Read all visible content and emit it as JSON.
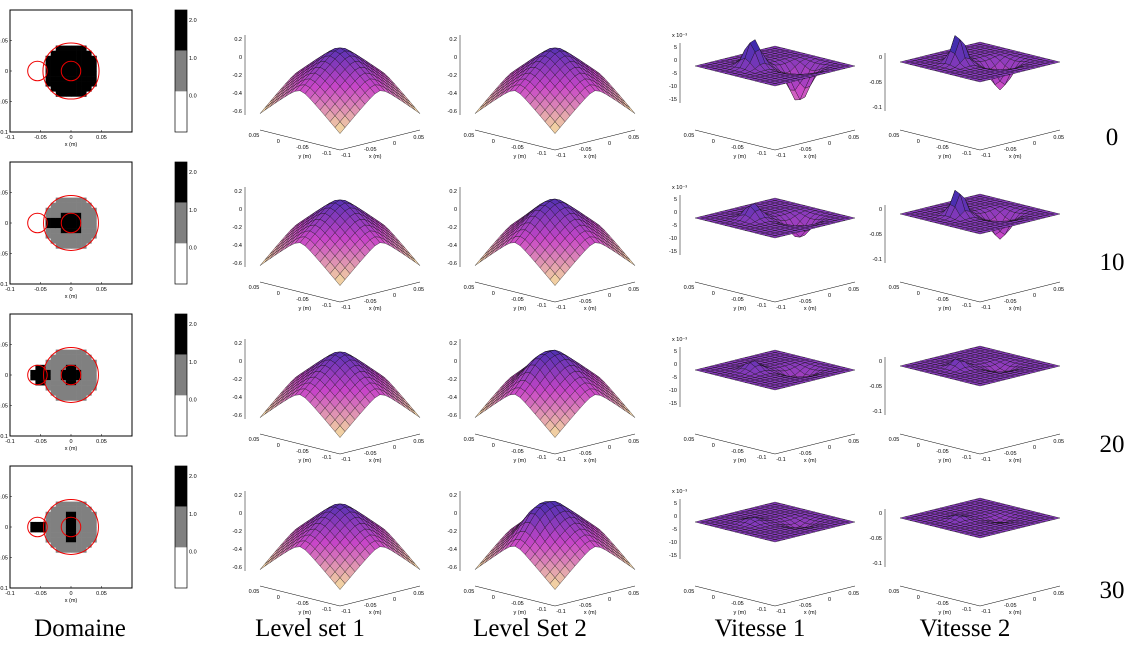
{
  "columns": [
    "Domaine",
    "Level set 1",
    "Level Set 2",
    "Vitesse 1",
    "Vitesse 2"
  ],
  "rows": [
    "0",
    "10",
    "20",
    "30"
  ],
  "domain_panel": {
    "xlabel": "x (m)",
    "ylabel": "y (m)",
    "xticks": [
      "-0.1",
      "-0.05",
      "0",
      "0.05"
    ],
    "yticks": [
      "0.05",
      "0",
      "-0.05",
      "-0.1"
    ],
    "colorbar_ticks": [
      "2.0",
      "1.0",
      "0.0"
    ]
  },
  "surface_panels": {
    "xlabel": "x (m)",
    "ylabel": "y (m)",
    "xticks": [
      "-0.1",
      "-0.05",
      "0",
      "0.05"
    ],
    "yticks": [
      "0.05",
      "0",
      "-0.05",
      "-0.1"
    ]
  },
  "level_set_zticks": [
    "0.2",
    "0",
    "-0.2",
    "-0.4",
    "-0.6"
  ],
  "vitesse1_zticks": [
    "5",
    "0",
    "-5",
    "-10",
    "-15"
  ],
  "vitesse1_exponent": "x 10⁻³",
  "vitesse2_zticks": [
    "0",
    "-0.05",
    "-0.1"
  ]
}
